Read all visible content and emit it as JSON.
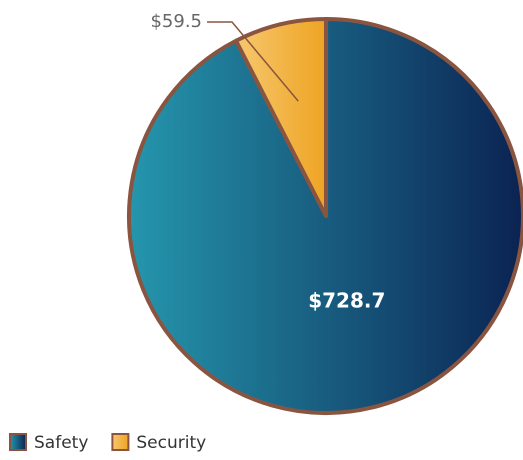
{
  "chart_data": {
    "type": "pie",
    "categories": [
      "Safety",
      "Security"
    ],
    "values": [
      728.7,
      59.5
    ],
    "value_labels": [
      "$728.7",
      "$59.5"
    ],
    "colors": [
      [
        "#2596ad",
        "#0b2352"
      ],
      [
        "#f7c76e",
        "#eea423"
      ]
    ],
    "legend": "bottom-left"
  }
}
